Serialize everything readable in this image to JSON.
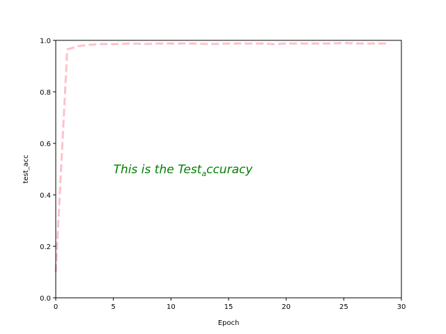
{
  "chart_data": {
    "type": "line",
    "title": "",
    "xlabel": "Epoch",
    "ylabel": "test_acc",
    "xlim": [
      0,
      30
    ],
    "ylim": [
      0.0,
      1.0
    ],
    "xticks": [
      0,
      5,
      10,
      15,
      20,
      25,
      30
    ],
    "xtick_labels": [
      "0",
      "5",
      "10",
      "15",
      "20",
      "25",
      "30"
    ],
    "yticks": [
      0.0,
      0.2,
      0.4,
      0.6,
      0.8,
      1.0
    ],
    "ytick_labels": [
      "0.0",
      "0.2",
      "0.4",
      "0.6",
      "0.8",
      "1.0"
    ],
    "grid": false,
    "series": [
      {
        "color": "#ffc0cb",
        "line_style": "dashed",
        "x": [
          0,
          1,
          2,
          3,
          4,
          5,
          6,
          7,
          8,
          9,
          10,
          11,
          12,
          13,
          14,
          15,
          16,
          17,
          18,
          19,
          20,
          21,
          22,
          23,
          24,
          25,
          26,
          27,
          28,
          29
        ],
        "y": [
          0.1,
          0.965,
          0.978,
          0.983,
          0.986,
          0.985,
          0.987,
          0.987,
          0.986,
          0.988,
          0.988,
          0.988,
          0.988,
          0.986,
          0.986,
          0.988,
          0.988,
          0.988,
          0.988,
          0.985,
          0.988,
          0.988,
          0.988,
          0.988,
          0.988,
          0.99,
          0.988,
          0.988,
          0.988,
          0.988
        ]
      }
    ],
    "annotation": {
      "prefix": "This is the Test",
      "subscript": "a",
      "suffix": "ccuracy",
      "color": "#008000",
      "x": 5,
      "y": 0.5
    }
  }
}
